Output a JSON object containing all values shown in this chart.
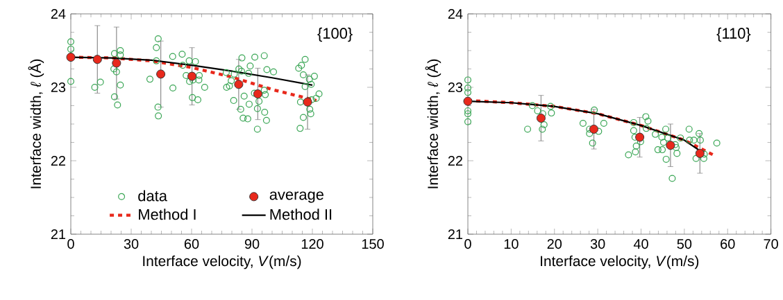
{
  "chart_data": [
    {
      "type": "scatter",
      "xlabel": "Interface velocity, *V*(m/s)",
      "ylabel": "Interface width, *ℓ* (Å)",
      "annotations": [
        "{100}"
      ],
      "xlim": [
        0,
        150
      ],
      "xticks": [
        0,
        30,
        60,
        90,
        120,
        150
      ],
      "ylim": [
        21,
        24
      ],
      "yticks": [
        21,
        22,
        23,
        24
      ],
      "legend": "bottom",
      "series": [
        {
          "name": "data",
          "type": "scatter",
          "marker": "circle",
          "color": "#3aa655",
          "x": [
            0,
            0,
            0,
            11.9,
            14.7,
            21.7,
            24.6,
            24.6,
            21.4,
            22.7,
            24.6,
            21.7,
            23.2,
            43.4,
            42.5,
            42.5,
            39.3,
            43.3,
            43.5,
            50.6,
            55.3,
            50.7,
            55.6,
            58.8,
            61.9,
            57.3,
            59.0,
            60.7,
            63.8,
            63.6,
            66.5,
            60.4,
            63.1,
            77.2,
            81.2,
            79.7,
            77.4,
            78.8,
            85.0,
            83.5,
            84.8,
            88.3,
            89.1,
            91.4,
            96.1,
            97.4,
            100.7,
            86.1,
            80.9,
            84.4,
            85.6,
            87.9,
            88.6,
            91.2,
            93.5,
            92.7,
            92.7,
            96.1,
            96.6,
            96.3,
            97.2,
            113.2,
            114.6,
            116.4,
            115.5,
            118.5,
            121.0,
            116.4,
            119.4,
            119.6,
            121.9,
            123.3,
            114.1,
            118.7,
            119.2,
            115.5,
            113.9
          ],
          "values": [
            23.62,
            23.52,
            23.08,
            23.0,
            23.07,
            23.46,
            23.5,
            23.44,
            23.25,
            23.21,
            23.03,
            22.87,
            22.76,
            23.66,
            23.54,
            23.36,
            23.11,
            22.73,
            22.61,
            23.42,
            23.45,
            22.99,
            23.3,
            23.36,
            23.35,
            23.16,
            23.08,
            23.1,
            23.16,
            23.1,
            23.0,
            22.86,
            22.83,
            23.2,
            23.18,
            23.09,
            23.0,
            23.02,
            23.4,
            23.25,
            23.22,
            23.19,
            23.29,
            23.41,
            23.43,
            23.24,
            23.21,
            22.88,
            22.82,
            22.7,
            22.58,
            22.57,
            22.77,
            22.92,
            22.81,
            22.71,
            22.43,
            22.96,
            22.9,
            22.66,
            22.55,
            23.26,
            23.3,
            23.38,
            23.17,
            23.11,
            23.15,
            23.01,
            23.04,
            22.83,
            22.85,
            22.91,
            22.8,
            22.7,
            22.64,
            22.59,
            22.44
          ]
        },
        {
          "name": "average",
          "type": "scatter",
          "marker": "circle",
          "color": "#e8291c",
          "x": [
            0,
            13.2,
            22.7,
            44.7,
            60.2,
            83.4,
            92.9,
            117.6
          ],
          "values": [
            23.41,
            23.38,
            23.33,
            23.18,
            23.15,
            23.04,
            22.91,
            22.8
          ],
          "errors": [
            null,
            0.46,
            0.49,
            0.45,
            0.39,
            0.34,
            0.35,
            0.37
          ]
        },
        {
          "name": "Method I",
          "type": "line",
          "line_style": "dashed",
          "color": "#e8291c",
          "x": [
            0,
            20,
            40,
            60,
            80,
            100,
            122
          ],
          "values": [
            23.41,
            23.4,
            23.36,
            23.27,
            23.14,
            22.97,
            22.82
          ]
        },
        {
          "name": "Method II",
          "type": "line",
          "line_style": "solid",
          "color": "#000000",
          "x": [
            0,
            20,
            40,
            60,
            80,
            100,
            120
          ],
          "values": [
            23.41,
            23.4,
            23.37,
            23.3,
            23.22,
            23.13,
            23.03
          ]
        }
      ]
    },
    {
      "type": "scatter",
      "xlabel": "Interface velocity, *V*(m/s)",
      "ylabel": "Interface width, *ℓ* (Å)",
      "annotations": [
        "{110}"
      ],
      "xlim": [
        0,
        70
      ],
      "xticks": [
        0,
        10,
        20,
        30,
        40,
        50,
        60,
        70
      ],
      "ylim": [
        21,
        24
      ],
      "yticks": [
        21,
        22,
        23,
        24
      ],
      "series": [
        {
          "type": "scatter",
          "marker": "circle",
          "color": "#3aa655",
          "x": [
            0,
            0,
            0,
            0,
            0,
            0,
            14.9,
            16.1,
            17.3,
            17.6,
            17.2,
            13.8,
            19.1,
            19.3,
            29.2,
            26.6,
            28.1,
            28.1,
            30.1,
            30.2,
            28.8,
            31.4,
            38.3,
            38.3,
            38.6,
            38.9,
            38.7,
            37.1,
            39.9,
            41.1,
            41.6,
            41.2,
            43.3,
            44.8,
            45.2,
            45.7,
            46.2,
            43.9,
            44.9,
            45.8,
            47.2,
            47.9,
            48.1,
            48.3,
            49.1,
            51.1,
            51.2,
            52.2,
            53.4,
            53.7,
            54.6,
            54.5,
            52.7,
            57.5
          ],
          "values": [
            23.1,
            22.99,
            22.93,
            22.68,
            22.64,
            22.53,
            22.75,
            22.68,
            22.64,
            22.49,
            22.43,
            22.43,
            22.74,
            22.65,
            22.69,
            22.51,
            22.43,
            22.37,
            null,
            22.4,
            22.24,
            22.51,
            22.52,
            22.41,
            22.32,
            22.2,
            22.12,
            22.08,
            22.26,
            22.6,
            22.54,
            22.44,
            22.36,
            22.32,
            22.25,
            22.43,
            22.31,
            22.15,
            22.15,
            22.02,
            21.76,
            22.22,
            22.18,
            22.1,
            22.31,
            22.43,
            22.28,
            22.28,
            22.37,
            22.28,
            22.09,
            22.03,
            22.03,
            22.24
          ]
        },
        {
          "type": "scatter",
          "marker": "circle",
          "color": "#e8291c",
          "x": [
            0,
            16.9,
            29.1,
            39.7,
            46.8,
            53.6
          ],
          "values": [
            22.81,
            22.58,
            22.43,
            22.32,
            22.21,
            22.1
          ],
          "errors": [
            null,
            0.31,
            0.27,
            0.27,
            0.29,
            0.27
          ]
        },
        {
          "type": "line",
          "line_style": "dashed",
          "color": "#e8291c",
          "x": [
            0,
            10,
            20,
            30,
            40,
            50,
            57
          ],
          "values": [
            22.82,
            22.79,
            22.74,
            22.64,
            22.48,
            22.28,
            22.07
          ]
        },
        {
          "type": "line",
          "line_style": "solid",
          "color": "#000000",
          "x": [
            0,
            10,
            20,
            30,
            40,
            50,
            54
          ],
          "values": [
            22.81,
            22.79,
            22.74,
            22.64,
            22.48,
            22.28,
            22.12
          ]
        }
      ]
    }
  ]
}
